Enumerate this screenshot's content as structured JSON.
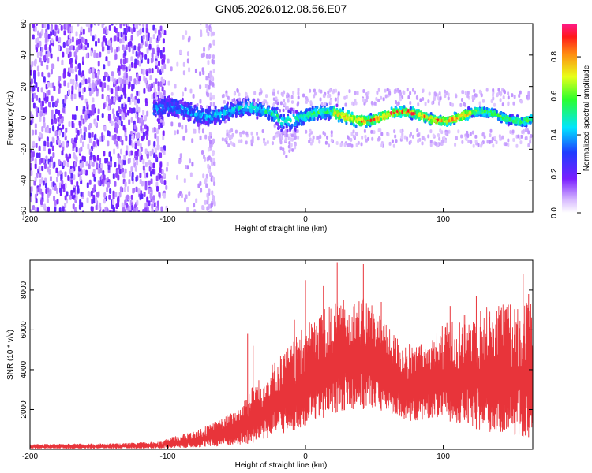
{
  "figure_title": "GN05.2026.012.08.56.E07",
  "chart_data": [
    {
      "type": "heatmap",
      "xlabel": "Height of straight line (km)",
      "ylabel": "Frequency (Hz)",
      "xlim": [
        -200,
        165
      ],
      "ylim": [
        -60,
        60
      ],
      "xticks": [
        -200,
        -100,
        0,
        100
      ],
      "yticks": [
        -60,
        -40,
        -20,
        0,
        20,
        40,
        60
      ],
      "colorbar": {
        "label": "Normalized spectral amplitude",
        "range": [
          0,
          0.97
        ],
        "ticks": [
          0.0,
          0.2,
          0.4,
          0.6,
          0.8
        ],
        "colormap": "rainbow (white/violet -> blue -> cyan -> green -> yellow -> red -> pink)"
      },
      "features": {
        "noise_region_km": [
          -200,
          -105
        ],
        "sparse_noise_km": [
          -105,
          -65
        ],
        "signal_band_km": [
          -110,
          165
        ],
        "signal_center_hz": 1,
        "signal_halfwidth_hz": [
          10,
          4
        ],
        "peak_amplitude_region_km": [
          20,
          120
        ],
        "dip_near_km": -15
      },
      "grid": false
    },
    {
      "type": "line",
      "xlabel": "Height of straight line (km)",
      "ylabel": "SNR (10 * v/v)",
      "xlim": [
        -200,
        165
      ],
      "ylim": [
        0,
        9500
      ],
      "xticks": [
        -200,
        -100,
        0,
        100
      ],
      "yticks": [
        2000,
        4000,
        6000,
        8000
      ],
      "color": "#e8343a",
      "grid": false,
      "envelope": {
        "x": [
          -200,
          -130,
          -105,
          -95,
          -80,
          -65,
          -50,
          -40,
          -30,
          -20,
          -10,
          0,
          10,
          20,
          30,
          40,
          50,
          60,
          70,
          80,
          90,
          100,
          110,
          120,
          130,
          140,
          150,
          165
        ],
        "low": [
          50,
          50,
          60,
          80,
          100,
          150,
          200,
          300,
          500,
          700,
          900,
          1200,
          1500,
          1800,
          2000,
          2000,
          2100,
          1800,
          1500,
          1400,
          1600,
          1500,
          1300,
          1100,
          900,
          800,
          700,
          600
        ],
        "high": [
          250,
          300,
          400,
          650,
          900,
          1400,
          2000,
          3100,
          3800,
          4700,
          5300,
          6300,
          6900,
          7300,
          7600,
          7600,
          7500,
          6100,
          5500,
          5200,
          5500,
          6300,
          6600,
          6900,
          7200,
          7300,
          7400,
          7600
        ]
      },
      "spikes": [
        {
          "x": -42,
          "y": 5800
        },
        {
          "x": -38,
          "y": 5200
        },
        {
          "x": -8,
          "y": 6500
        },
        {
          "x": 0,
          "y": 8500
        },
        {
          "x": 13,
          "y": 8200
        },
        {
          "x": 23,
          "y": 9400
        },
        {
          "x": 42,
          "y": 9300
        },
        {
          "x": 55,
          "y": 7400
        },
        {
          "x": 105,
          "y": 7200
        },
        {
          "x": 124,
          "y": 7700
        },
        {
          "x": 158,
          "y": 8800
        },
        {
          "x": 162,
          "y": 7800
        }
      ]
    }
  ]
}
